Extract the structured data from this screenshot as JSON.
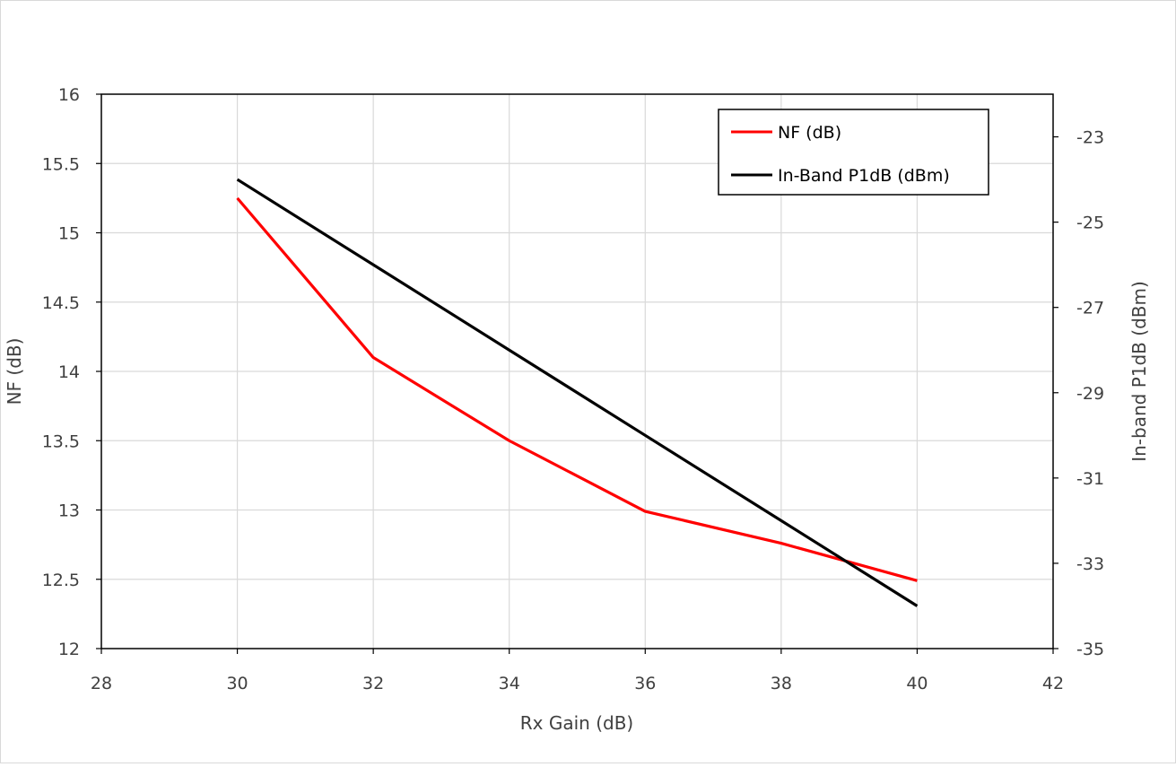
{
  "chart_data": {
    "type": "line",
    "title": "",
    "xlabel": "Rx Gain (dB)",
    "ylabel": "NF (dB)",
    "y2label": "In-band P1dB (dBm)",
    "xlim": [
      28,
      42
    ],
    "ylim": [
      12,
      16
    ],
    "y2lim": [
      -35,
      -22
    ],
    "x_ticks": [
      28,
      30,
      32,
      34,
      36,
      38,
      40,
      42
    ],
    "y_ticks": [
      12,
      12.5,
      13,
      13.5,
      14,
      14.5,
      15,
      15.5,
      16
    ],
    "y2_ticks": [
      -35,
      -33,
      -31,
      -29,
      -27,
      -25,
      -23
    ],
    "grid": true,
    "legend_position": "top-right",
    "series": [
      {
        "name": "NF (dB)",
        "axis": "left",
        "color": "#ff0000",
        "x": [
          30,
          32,
          34,
          36,
          38,
          40
        ],
        "y": [
          15.25,
          14.1,
          13.5,
          12.99,
          12.76,
          12.49
        ]
      },
      {
        "name": "In-Band P1dB (dBm)",
        "axis": "right",
        "color": "#000000",
        "x": [
          30,
          32,
          34,
          36,
          38,
          40
        ],
        "y": [
          -24,
          -26,
          -28,
          -30,
          -32,
          -34
        ]
      }
    ]
  }
}
